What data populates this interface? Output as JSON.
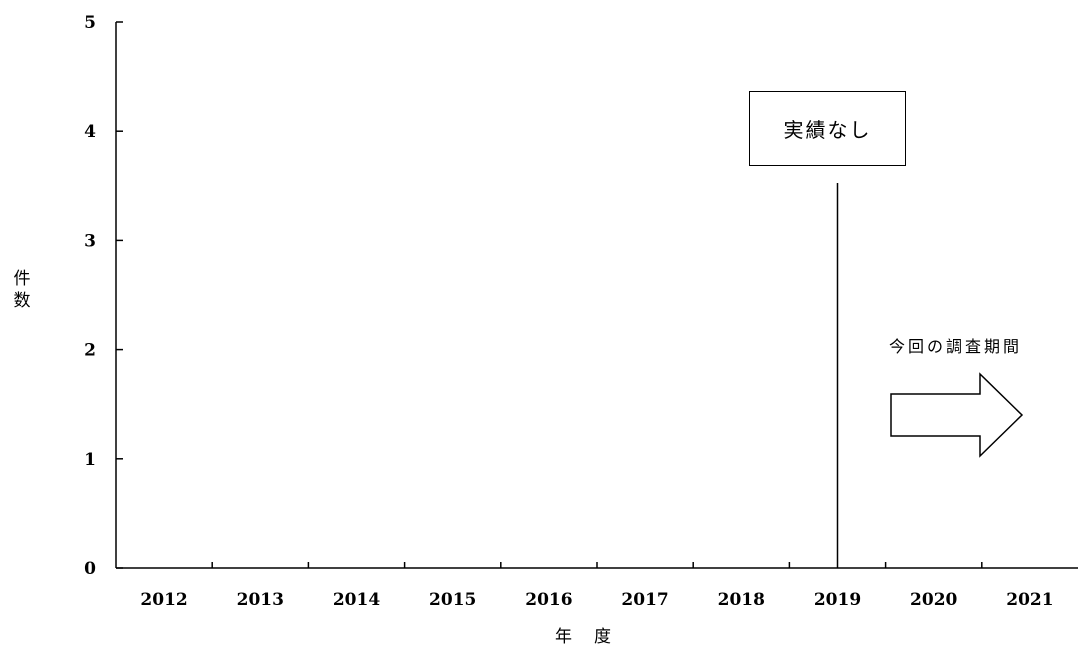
{
  "chart_data": {
    "type": "bar",
    "categories": [
      "2012",
      "2013",
      "2014",
      "2015",
      "2016",
      "2017",
      "2018",
      "2019",
      "2020",
      "2021"
    ],
    "series": [
      {
        "values": [
          0,
          0,
          0,
          0,
          0,
          0,
          0,
          0,
          0,
          0
        ]
      }
    ],
    "ylabel_chars": [
      "件",
      "数"
    ],
    "xlabel_chars": [
      "年",
      "度"
    ],
    "ylim": [
      0,
      5
    ],
    "yticks": [
      0,
      1,
      2,
      3,
      4,
      5
    ],
    "grid": false,
    "annotations": {
      "note": "実績なし",
      "period_label": "今回の調査期間",
      "marker_year": "2019"
    }
  }
}
